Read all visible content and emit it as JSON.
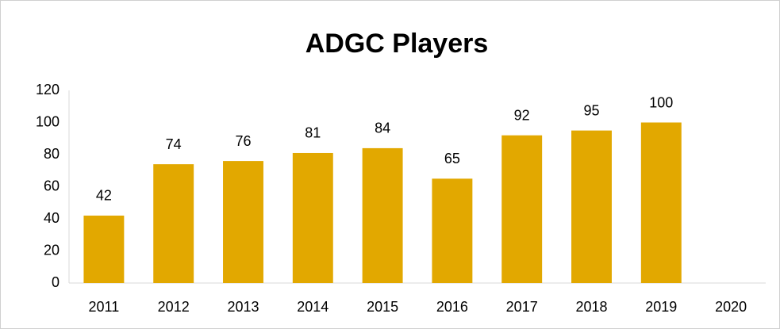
{
  "chart_data": {
    "type": "bar",
    "title": "ADGC Players",
    "categories": [
      "2011",
      "2012",
      "2013",
      "2014",
      "2015",
      "2016",
      "2017",
      "2018",
      "2019",
      "2020"
    ],
    "values": [
      42,
      74,
      76,
      81,
      84,
      65,
      92,
      95,
      100,
      null
    ],
    "color": "#e2a800",
    "ylim": [
      0,
      120
    ],
    "yticks": [
      0,
      20,
      40,
      60,
      80,
      100,
      120
    ],
    "grid": false
  }
}
